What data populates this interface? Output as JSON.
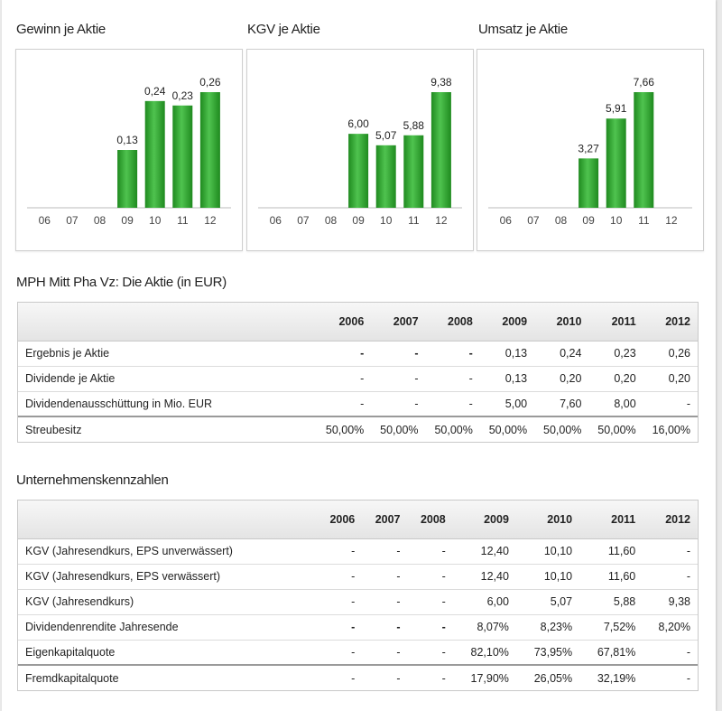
{
  "charts": [
    {
      "title": "Gewinn je Aktie",
      "chart_data": {
        "type": "bar",
        "categories": [
          "06",
          "07",
          "08",
          "09",
          "10",
          "11",
          "12"
        ],
        "values": [
          null,
          null,
          null,
          0.13,
          0.24,
          0.23,
          0.26
        ],
        "labels": [
          "",
          "",
          "",
          "0,13",
          "0,24",
          "0,23",
          "0,26"
        ],
        "ylim": [
          0,
          0.26
        ]
      }
    },
    {
      "title": "KGV je Aktie",
      "chart_data": {
        "type": "bar",
        "categories": [
          "06",
          "07",
          "08",
          "09",
          "10",
          "11",
          "12"
        ],
        "values": [
          null,
          null,
          null,
          6.0,
          5.07,
          5.88,
          9.38
        ],
        "labels": [
          "",
          "",
          "",
          "6,00",
          "5,07",
          "5,88",
          "9,38"
        ],
        "ylim": [
          0,
          9.38
        ]
      }
    },
    {
      "title": "Umsatz je Aktie",
      "chart_data": {
        "type": "bar",
        "categories": [
          "06",
          "07",
          "08",
          "09",
          "10",
          "11",
          "12"
        ],
        "values": [
          null,
          null,
          null,
          3.27,
          5.91,
          7.66,
          null
        ],
        "labels": [
          "",
          "",
          "",
          "3,27",
          "5,91",
          "7,66",
          ""
        ],
        "ylim": [
          0,
          7.66
        ]
      }
    }
  ],
  "colors": {
    "bar_dark": "#1f8a1f",
    "bar_light": "#4fc34f",
    "axis": "#bbbbbb"
  },
  "aktie": {
    "title": "MPH Mitt Pha Vz: Die Aktie (in EUR)",
    "years": [
      "2006",
      "2007",
      "2008",
      "2009",
      "2010",
      "2011",
      "2012"
    ],
    "rows": [
      {
        "label": "Ergebnis je Aktie",
        "values": [
          "-",
          "-",
          "-",
          "0,13",
          "0,24",
          "0,23",
          "0,26"
        ]
      },
      {
        "label": "Dividende je Aktie",
        "values": [
          "-",
          "-",
          "-",
          "0,13",
          "0,20",
          "0,20",
          "0,20"
        ]
      },
      {
        "label": "Dividendenausschüttung in Mio. EUR",
        "values": [
          "-",
          "-",
          "-",
          "5,00",
          "7,60",
          "8,00",
          "-"
        ]
      },
      {
        "label": "Streubesitz",
        "values": [
          "50,00%",
          "50,00%",
          "50,00%",
          "50,00%",
          "50,00%",
          "50,00%",
          "16,00%"
        ]
      }
    ]
  },
  "kennzahlen": {
    "title": "Unternehmenskennzahlen",
    "years": [
      "2006",
      "2007",
      "2008",
      "2009",
      "2010",
      "2011",
      "2012"
    ],
    "rows": [
      {
        "label": "KGV (Jahresendkurs, EPS unverwässert)",
        "values": [
          "-",
          "-",
          "-",
          "12,40",
          "10,10",
          "11,60",
          "-"
        ]
      },
      {
        "label": "KGV (Jahresendkurs, EPS verwässert)",
        "values": [
          "-",
          "-",
          "-",
          "12,40",
          "10,10",
          "11,60",
          "-"
        ]
      },
      {
        "label": "KGV (Jahresendkurs)",
        "values": [
          "-",
          "-",
          "-",
          "6,00",
          "5,07",
          "5,88",
          "9,38"
        ]
      },
      {
        "label": "Dividendenrendite Jahresende",
        "values": [
          "-",
          "-",
          "-",
          "8,07%",
          "8,23%",
          "7,52%",
          "8,20%"
        ]
      },
      {
        "label": "Eigenkapitalquote",
        "values": [
          "-",
          "-",
          "-",
          "82,10%",
          "73,95%",
          "67,81%",
          "-"
        ]
      },
      {
        "label": "Fremdkapitalquote",
        "values": [
          "-",
          "-",
          "-",
          "17,90%",
          "26,05%",
          "32,19%",
          "-"
        ]
      }
    ]
  }
}
